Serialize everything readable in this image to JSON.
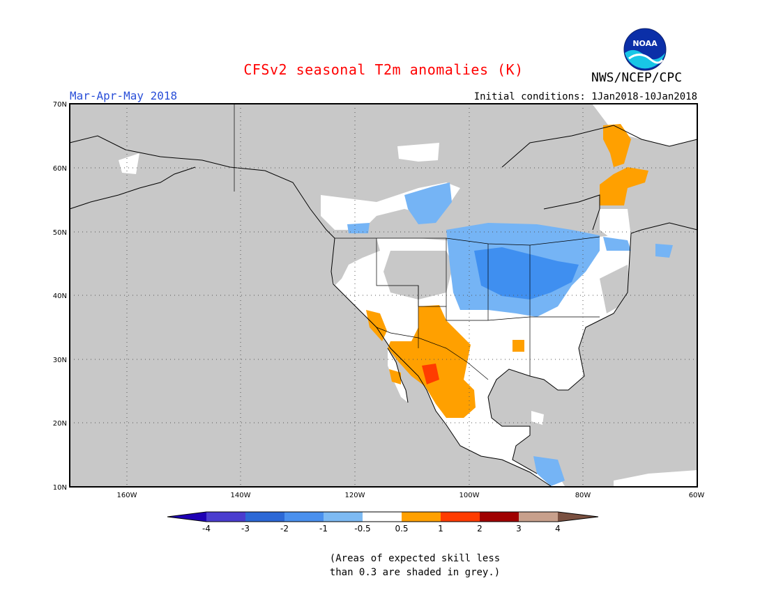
{
  "title": "CFSv2 seasonal T2m anomalies (K)",
  "season": "Mar-Apr-May 2018",
  "initial_conditions": "Initial conditions: 1Jan2018-10Jan2018",
  "agency": "NWS/NCEP/CPC",
  "logo": {
    "text": "NOAA",
    "icon": "noaa-logo"
  },
  "colors": {
    "title": "#ff0000",
    "season": "#2a4fd8",
    "ocean": "#c8c8c8",
    "land": "#ffffff",
    "cool_1": "#75b4f5",
    "cool_2": "#3f8ff0",
    "warm_1": "#ffa000",
    "warm_2": "#ff3c00"
  },
  "map": {
    "lat_labels": [
      "70N",
      "60N",
      "50N",
      "40N",
      "30N",
      "20N",
      "10N"
    ],
    "lon_labels": [
      "160W",
      "140W",
      "120W",
      "100W",
      "80W",
      "60W"
    ],
    "grid": "dotted"
  },
  "colorbar": {
    "tick_labels": [
      "-4",
      "-3",
      "-2",
      "-1",
      "-0.5",
      "0.5",
      "1",
      "2",
      "3",
      "4"
    ],
    "colors": [
      "#1e00b4",
      "#4a3dcf",
      "#2c68d6",
      "#4a90ee",
      "#7dbaf3",
      "#ffffff",
      "#ffa000",
      "#ff3c00",
      "#a00000",
      "#c8a08c",
      "#7a5040"
    ]
  },
  "note": [
    "(Areas of expected skill less",
    "than 0.3 are shaded in grey.)"
  ]
}
